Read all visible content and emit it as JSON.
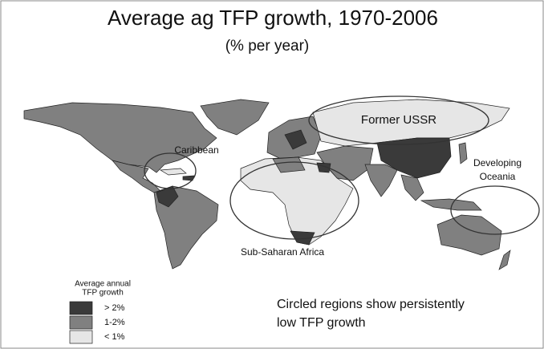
{
  "title": "Average ag TFP growth, 1970-2006",
  "subtitle": "(% per year)",
  "regions": [
    {
      "lines": [
        "Former USSR"
      ]
    },
    {
      "lines": [
        "Caribbean"
      ]
    },
    {
      "lines": [
        "Sub-Saharan Africa"
      ]
    },
    {
      "lines": [
        "Developing",
        "Oceania"
      ]
    }
  ],
  "legend": {
    "lines": [
      "Average annual",
      "TFP growth"
    ],
    "items": [
      {
        "label": "> 2%",
        "color": "#3a3a3a"
      },
      {
        "label": "1-2%",
        "color": "#808080"
      },
      {
        "label": "< 1%",
        "color": "#e6e6e6"
      }
    ]
  },
  "note": {
    "lines": [
      "Circled regions show persistently",
      "low TFP growth"
    ]
  }
}
